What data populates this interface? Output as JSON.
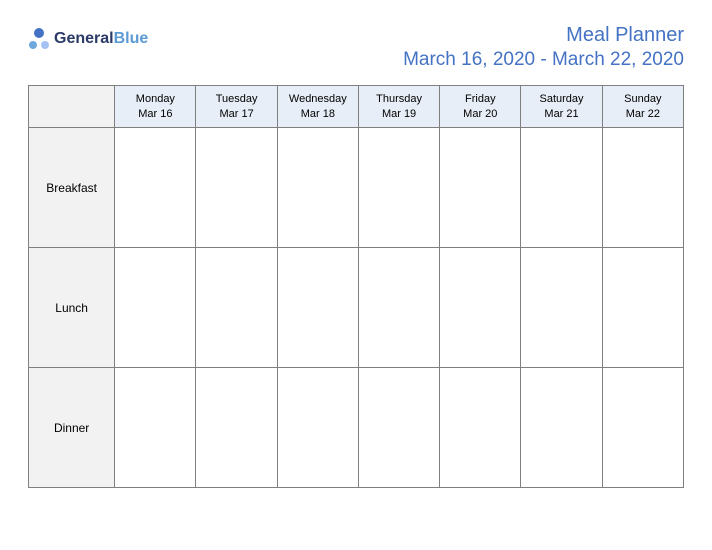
{
  "logo": {
    "text1": "General",
    "text2": "Blue"
  },
  "header": {
    "title": "Meal Planner",
    "subtitle": "March 16, 2020 - March 22, 2020"
  },
  "table": {
    "columns": [
      {
        "day": "Monday",
        "date": "Mar 16"
      },
      {
        "day": "Tuesday",
        "date": "Mar 17"
      },
      {
        "day": "Wednesday",
        "date": "Mar 18"
      },
      {
        "day": "Thursday",
        "date": "Mar 19"
      },
      {
        "day": "Friday",
        "date": "Mar 20"
      },
      {
        "day": "Saturday",
        "date": "Mar 21"
      },
      {
        "day": "Sunday",
        "date": "Mar 22"
      }
    ],
    "rows": [
      "Breakfast",
      "Lunch",
      "Dinner"
    ],
    "colors": {
      "header_bg": "#e8eef7",
      "rowhead_bg": "#f2f2f2",
      "border": "#7f7f7f",
      "title_color": "#4472c4"
    }
  }
}
